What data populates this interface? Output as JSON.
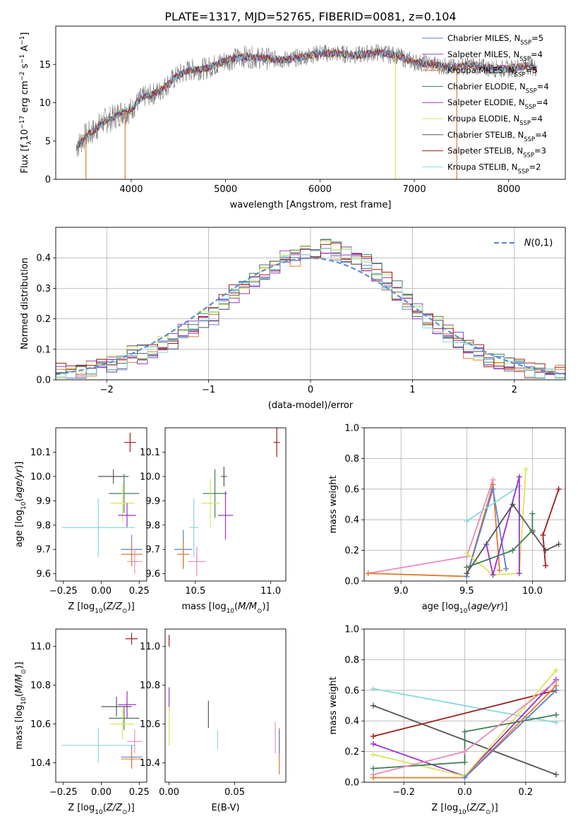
{
  "title": "PLATE=1317, MJD=52765, FIBERID=0081, z=0.104",
  "colors": {
    "CM": "#5b7fd6",
    "SM": "#8a4fbf",
    "KM": "#e07b2a",
    "CE": "#3f7f55",
    "SE": "#9b30c8",
    "KE": "#d8e65a",
    "CS": "#555555",
    "SS": "#a31a1a",
    "KS": "#88d8dc",
    "pink": "#e88aba",
    "grey": "#888888",
    "gauss": "#5b8fd6"
  },
  "legend": [
    {
      "key": "CM",
      "text": "Chabrier MILES, N",
      "sub": "SSP",
      "tail": "=5"
    },
    {
      "key": "SM",
      "text": "Salpeter MILES, N",
      "sub": "SSP",
      "tail": "=4"
    },
    {
      "key": "KM",
      "text": "Kroupa MILES, N",
      "sub": "SSP",
      "tail": "=5"
    },
    {
      "key": "CE",
      "text": "Chabrier ELODIE, N",
      "sub": "SSP",
      "tail": "=4"
    },
    {
      "key": "SE",
      "text": "Salpeter ELODIE, N",
      "sub": "SSP",
      "tail": "=4"
    },
    {
      "key": "KE",
      "text": "Kroupa ELODIE, N",
      "sub": "SSP",
      "tail": "=4"
    },
    {
      "key": "CS",
      "text": "Chabrier STELIB, N",
      "sub": "SSP",
      "tail": "=4"
    },
    {
      "key": "SS",
      "text": "Salpeter STELIB, N",
      "sub": "SSP",
      "tail": "=3"
    },
    {
      "key": "KS",
      "text": "Kroupa STELIB, N",
      "sub": "SSP",
      "tail": "=2"
    }
  ],
  "chart_data": [
    {
      "id": "spectrum",
      "type": "line",
      "title": "PLATE=1317, MJD=52765, FIBERID=0081, z=0.104",
      "xlabel": "wavelength [Angstrom, rest frame]",
      "ylabel": "Flux [f_λ 10^-17 erg cm^-2 s^-1 A^-1]",
      "xlim": [
        3200,
        8600
      ],
      "ylim": [
        0,
        20
      ],
      "xticks": [
        4000,
        5000,
        6000,
        7000,
        8000
      ],
      "yticks": [
        0,
        5,
        10,
        15
      ],
      "continuum": {
        "x": [
          3420,
          3500,
          3600,
          3700,
          3800,
          3900,
          4000,
          4100,
          4200,
          4300,
          4400,
          4500,
          4600,
          4800,
          5000,
          5200,
          5400,
          5600,
          5800,
          6000,
          6200,
          6400,
          6600,
          6800,
          7000,
          7200,
          7400,
          7600,
          7800,
          8000,
          8200,
          8300
        ],
        "y": [
          4.2,
          5.5,
          6.3,
          7.5,
          8.0,
          8.8,
          9.0,
          10.6,
          11.0,
          11.5,
          12.6,
          13.6,
          14.2,
          14.5,
          15.5,
          16.0,
          15.8,
          15.6,
          15.9,
          16.5,
          16.4,
          16.2,
          16.6,
          16.2,
          15.3,
          15.0,
          14.6,
          14.9,
          14.5,
          14.4,
          14.9,
          14.5
        ]
      },
      "legend_position": "right"
    },
    {
      "id": "residuals",
      "type": "bar",
      "xlabel": "(data-model)/error",
      "ylabel": "Normed distribution",
      "xlim": [
        -2.5,
        2.5
      ],
      "ylim": [
        0,
        0.5
      ],
      "xticks": [
        -2,
        -1,
        0,
        1,
        2
      ],
      "yticks": [
        0.0,
        0.1,
        0.2,
        0.3,
        0.4
      ],
      "bin_edges_start": -2.5,
      "bin_width": 0.1,
      "values": [
        0.02,
        0.02,
        0.03,
        0.03,
        0.04,
        0.05,
        0.06,
        0.08,
        0.08,
        0.09,
        0.11,
        0.12,
        0.15,
        0.16,
        0.2,
        0.21,
        0.25,
        0.28,
        0.31,
        0.33,
        0.35,
        0.37,
        0.39,
        0.4,
        0.42,
        0.41,
        0.43,
        0.42,
        0.41,
        0.4,
        0.38,
        0.35,
        0.32,
        0.29,
        0.26,
        0.23,
        0.2,
        0.18,
        0.15,
        0.13,
        0.1,
        0.09,
        0.07,
        0.06,
        0.05,
        0.04,
        0.03,
        0.03,
        0.02,
        0.02
      ],
      "gaussian_label": "N(0,1)",
      "grid": true
    },
    {
      "id": "age_vs_Z",
      "type": "scatter",
      "xlabel": "Z [log10(Z/Z⊙)]",
      "ylabel": "age [log10(age/yr)]",
      "xlim": [
        -0.3,
        0.3
      ],
      "ylim": [
        9.57,
        10.2
      ],
      "xticks": [
        -0.25,
        0.0,
        0.25
      ],
      "yticks": [
        9.6,
        9.7,
        9.8,
        9.9,
        10.0,
        10.1
      ],
      "points": [
        {
          "key": "SS",
          "x": 0.19,
          "y": 10.14,
          "xe": 0.04,
          "ye": 0.04
        },
        {
          "key": "CS",
          "x": 0.08,
          "y": 10.0,
          "xe": 0.1,
          "ye": 0.03
        },
        {
          "key": "CE",
          "x": 0.15,
          "y": 9.93,
          "xe": 0.1,
          "ye": 0.08
        },
        {
          "key": "KE",
          "x": 0.14,
          "y": 9.89,
          "xe": 0.08,
          "ye": 0.08
        },
        {
          "key": "SE",
          "x": 0.17,
          "y": 9.84,
          "xe": 0.06,
          "ye": 0.05
        },
        {
          "key": "KS",
          "x": -0.02,
          "y": 9.79,
          "xe": 0.24,
          "ye": 0.12
        },
        {
          "key": "CM",
          "x": 0.2,
          "y": 9.7,
          "xe": 0.07,
          "ye": 0.06
        },
        {
          "key": "KM",
          "x": 0.2,
          "y": 9.68,
          "xe": 0.07,
          "ye": 0.05
        },
        {
          "key": "pink",
          "x": 0.22,
          "y": 9.65,
          "xe": 0.05,
          "ye": 0.05
        }
      ]
    },
    {
      "id": "age_vs_mass",
      "type": "scatter",
      "xlabel": "mass [log10(M/M⊙)]",
      "ylabel": "",
      "xlim": [
        10.3,
        11.1
      ],
      "ylim": [
        9.57,
        10.2
      ],
      "xticks": [
        10.5,
        11.0
      ],
      "yticks": [
        9.6,
        9.7,
        9.8,
        9.9,
        10.0,
        10.1
      ],
      "points": [
        {
          "key": "SS",
          "x": 11.04,
          "y": 10.14,
          "xe": 0.02,
          "ye": 0.06
        },
        {
          "key": "CS",
          "x": 10.69,
          "y": 10.0,
          "xe": 0.02,
          "ye": 0.04
        },
        {
          "key": "CE",
          "x": 10.63,
          "y": 9.93,
          "xe": 0.08,
          "ye": 0.1
        },
        {
          "key": "KE",
          "x": 10.6,
          "y": 9.89,
          "xe": 0.06,
          "ye": 0.1
        },
        {
          "key": "SE",
          "x": 10.7,
          "y": 9.84,
          "xe": 0.05,
          "ye": 0.1
        },
        {
          "key": "KS",
          "x": 10.49,
          "y": 9.79,
          "xe": 0.03,
          "ye": 0.12
        },
        {
          "key": "CM",
          "x": 10.42,
          "y": 9.7,
          "xe": 0.06,
          "ye": 0.08
        },
        {
          "key": "KM",
          "x": 10.42,
          "y": 9.68,
          "xe": 0.04,
          "ye": 0.06
        },
        {
          "key": "pink",
          "x": 10.51,
          "y": 9.65,
          "xe": 0.06,
          "ye": 0.06
        }
      ]
    },
    {
      "id": "mass_weight_vs_age",
      "type": "line",
      "xlabel": "age [log10(age/yr)]",
      "ylabel": "mass weight",
      "xlim": [
        8.72,
        10.25
      ],
      "ylim": [
        0,
        1
      ],
      "xticks": [
        9.0,
        9.5,
        10.0
      ],
      "yticks": [
        0.0,
        0.2,
        0.4,
        0.6,
        0.8,
        1.0
      ],
      "series": [
        {
          "key": "pink",
          "x": [
            8.75,
            9.5,
            9.7
          ],
          "y": [
            0.05,
            0.16,
            0.66
          ]
        },
        {
          "key": "KM",
          "x": [
            8.75,
            9.5,
            9.7,
            9.75
          ],
          "y": [
            0.05,
            0.03,
            0.63,
            0.07
          ]
        },
        {
          "key": "CM",
          "x": [
            9.5,
            9.7,
            9.8
          ],
          "y": [
            0.03,
            0.6,
            0.08
          ]
        },
        {
          "key": "KS",
          "x": [
            9.5,
            9.9
          ],
          "y": [
            0.39,
            0.62
          ]
        },
        {
          "key": "KE",
          "x": [
            9.5,
            9.7,
            9.9,
            9.95
          ],
          "y": [
            0.18,
            0.04,
            0.05,
            0.73
          ]
        },
        {
          "key": "SE",
          "x": [
            9.65,
            9.7,
            9.9,
            9.9
          ],
          "y": [
            0.24,
            0.04,
            0.68,
            0.05
          ]
        },
        {
          "key": "CS",
          "x": [
            9.5,
            9.85,
            10.0,
            10.1,
            10.2
          ],
          "y": [
            0.05,
            0.5,
            0.32,
            0.2,
            0.24
          ]
        },
        {
          "key": "CE",
          "x": [
            9.5,
            9.85,
            10.0,
            10.0
          ],
          "y": [
            0.09,
            0.2,
            0.33,
            0.44
          ]
        },
        {
          "key": "SS",
          "x": [
            10.1,
            10.08,
            10.2
          ],
          "y": [
            0.1,
            0.3,
            0.6
          ]
        }
      ],
      "grid": true
    },
    {
      "id": "mass_vs_Z",
      "type": "scatter",
      "xlabel": "Z [log10(Z/Z⊙)]",
      "ylabel": "mass [log10(M/M⊙)]",
      "xlim": [
        -0.3,
        0.3
      ],
      "ylim": [
        10.3,
        11.09
      ],
      "xticks": [
        -0.25,
        0.0,
        0.25
      ],
      "yticks": [
        10.4,
        10.6,
        10.8,
        11.0
      ],
      "points": [
        {
          "key": "SS",
          "x": 0.2,
          "y": 11.04,
          "xe": 0.04,
          "ye": 0.03
        },
        {
          "key": "SE",
          "x": 0.17,
          "y": 10.7,
          "xe": 0.06,
          "ye": 0.07
        },
        {
          "key": "CS",
          "x": 0.1,
          "y": 10.69,
          "xe": 0.1,
          "ye": 0.05
        },
        {
          "key": "CE",
          "x": 0.15,
          "y": 10.63,
          "xe": 0.1,
          "ye": 0.06
        },
        {
          "key": "KE",
          "x": 0.14,
          "y": 10.6,
          "xe": 0.08,
          "ye": 0.08
        },
        {
          "key": "pink",
          "x": 0.22,
          "y": 10.51,
          "xe": 0.05,
          "ye": 0.06
        },
        {
          "key": "KS",
          "x": -0.02,
          "y": 10.49,
          "xe": 0.24,
          "ye": 0.09
        },
        {
          "key": "CM",
          "x": 0.2,
          "y": 10.43,
          "xe": 0.07,
          "ye": 0.06
        },
        {
          "key": "KM",
          "x": 0.2,
          "y": 10.42,
          "xe": 0.07,
          "ye": 0.05
        }
      ]
    },
    {
      "id": "mass_vs_EBV",
      "type": "scatter",
      "xlabel": "E(B-V)",
      "ylabel": "",
      "xlim": [
        -0.003,
        0.089
      ],
      "ylim": [
        10.3,
        11.09
      ],
      "xticks": [
        0.0,
        0.05
      ],
      "yticks": [
        10.4,
        10.6,
        10.8,
        11.0
      ],
      "points": [
        {
          "key": "SS",
          "x": 0.0,
          "y": 11.03,
          "xe": 0,
          "ye": 0.03
        },
        {
          "key": "SE",
          "x": 0.0,
          "y": 10.73,
          "xe": 0,
          "ye": 0.06
        },
        {
          "key": "KE",
          "x": 0.0,
          "y": 10.59,
          "xe": 0,
          "ye": 0.1
        },
        {
          "key": "CS",
          "x": 0.03,
          "y": 10.65,
          "xe": 0,
          "ye": 0.07
        },
        {
          "key": "KS",
          "x": 0.037,
          "y": 10.52,
          "xe": 0,
          "ye": 0.05
        },
        {
          "key": "pink",
          "x": 0.081,
          "y": 10.53,
          "xe": 0,
          "ye": 0.08
        },
        {
          "key": "KM",
          "x": 0.084,
          "y": 10.46,
          "xe": 0,
          "ye": 0.12
        },
        {
          "key": "CM",
          "x": 0.084,
          "y": 10.51,
          "xe": 0,
          "ye": 0.06
        }
      ]
    },
    {
      "id": "mass_weight_vs_Z",
      "type": "line",
      "xlabel": "Z [log10(Z/Z⊙)]",
      "ylabel": "mass weight",
      "xlim": [
        -0.33,
        0.33
      ],
      "ylim": [
        0,
        1
      ],
      "xticks": [
        -0.2,
        0.0,
        0.2
      ],
      "yticks": [
        0.0,
        0.2,
        0.4,
        0.6,
        0.8,
        1.0
      ],
      "series": [
        {
          "key": "KS",
          "x": [
            -0.3,
            0.3
          ],
          "y": [
            0.61,
            0.39
          ]
        },
        {
          "key": "CS",
          "x": [
            -0.3,
            0.3
          ],
          "y": [
            0.5,
            0.05
          ]
        },
        {
          "key": "SS",
          "x": [
            -0.3,
            0.3
          ],
          "y": [
            0.3,
            0.6
          ]
        },
        {
          "key": "SE",
          "x": [
            -0.3,
            0.0,
            0.3
          ],
          "y": [
            0.25,
            0.04,
            0.67
          ]
        },
        {
          "key": "KE",
          "x": [
            -0.3,
            0.0,
            0.3
          ],
          "y": [
            0.18,
            0.04,
            0.73
          ]
        },
        {
          "key": "CE",
          "x": [
            -0.3,
            0.0,
            0.0,
            0.3
          ],
          "y": [
            0.09,
            0.13,
            0.33,
            0.44
          ]
        },
        {
          "key": "pink",
          "x": [
            -0.3,
            0.0,
            0.3
          ],
          "y": [
            0.05,
            0.2,
            0.66
          ]
        },
        {
          "key": "KM",
          "x": [
            -0.3,
            0.0,
            0.3
          ],
          "y": [
            0.03,
            0.03,
            0.63
          ]
        },
        {
          "key": "CM",
          "x": [
            0.0,
            0.3
          ],
          "y": [
            0.03,
            0.6
          ]
        }
      ],
      "grid": true
    }
  ]
}
